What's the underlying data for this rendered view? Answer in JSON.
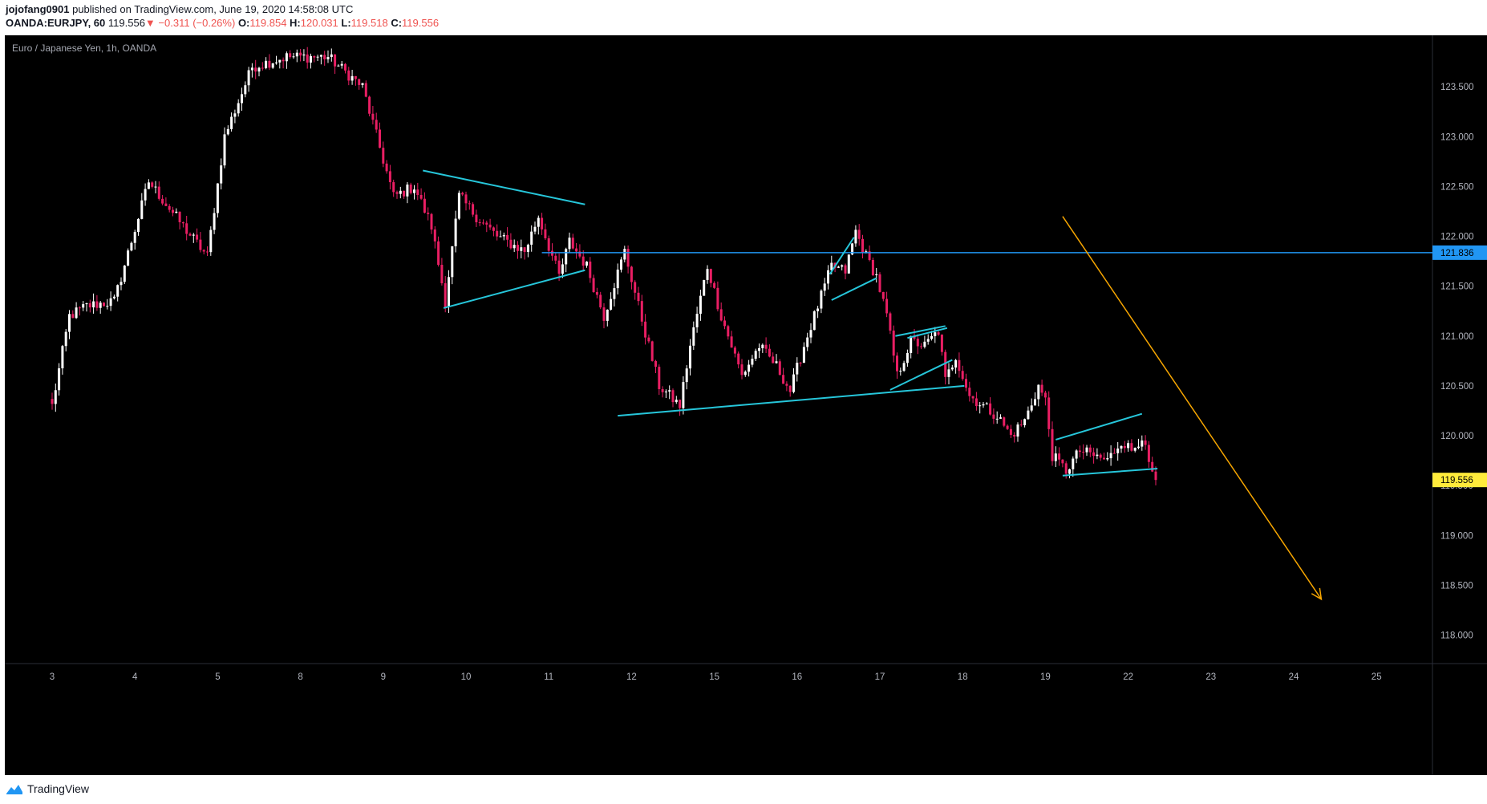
{
  "header": {
    "user": "jojofang0901",
    "published": "published on TradingView.com, June 19, 2020 14:58:08 UTC",
    "symbol": "OANDA:EURJPY, 60",
    "last": "119.556",
    "change_arrow": "▼",
    "change": "−0.311 (−0.26%)",
    "o_label": "O:",
    "o": "119.854",
    "h_label": "H:",
    "h": "120.031",
    "l_label": "L:",
    "l": "119.518",
    "c_label": "C:",
    "c": "119.556"
  },
  "footer": {
    "brand": "TradingView"
  },
  "colors": {
    "background": "#000000",
    "bull": "#ffffff",
    "bear": "#e91e63",
    "trendline": "#26c6da",
    "level_line": "#2196f3",
    "arrow": "#f7a600",
    "price_tag": "#ffeb3b"
  },
  "chart_data": {
    "type": "candlestick",
    "instrument": "Euro / Japanese Yen, 1h, OANDA",
    "y_ticks": [
      "123.500",
      "123.000",
      "122.500",
      "122.000",
      "121.500",
      "121.000",
      "120.500",
      "120.000",
      "119.500",
      "119.000",
      "118.500",
      "118.000"
    ],
    "y_tick_values": [
      123.5,
      123.0,
      122.5,
      122.0,
      121.5,
      121.0,
      120.5,
      120.0,
      119.5,
      119.0,
      118.5,
      118.0
    ],
    "x_ticks": [
      "3",
      "4",
      "5",
      "8",
      "9",
      "10",
      "11",
      "12",
      "15",
      "16",
      "17",
      "18",
      "19",
      "22",
      "23",
      "24",
      "25"
    ],
    "x_tick_index": [
      0,
      24,
      48,
      72,
      96,
      120,
      144,
      168,
      192,
      216,
      240,
      264,
      288,
      312,
      336,
      360,
      384
    ],
    "horizontal_level": 121.836,
    "horizontal_level_label": "121.836",
    "last_price": 119.556,
    "last_price_label": "119.556",
    "trend_lines": [
      {
        "from": [
          107.5,
          122.66
        ],
        "to": [
          154.5,
          122.32
        ]
      },
      {
        "from": [
          113.5,
          121.28
        ],
        "to": [
          154.5,
          121.66
        ]
      },
      {
        "from": [
          164.0,
          120.2
        ],
        "to": [
          264.5,
          120.5
        ]
      },
      {
        "from": [
          226.0,
          121.36
        ],
        "to": [
          239.0,
          121.58
        ]
      },
      {
        "from": [
          225.5,
          121.62
        ],
        "to": [
          232.5,
          121.99
        ]
      },
      {
        "from": [
          244.5,
          121.0
        ],
        "to": [
          259.0,
          121.1
        ]
      },
      {
        "from": [
          243.0,
          120.46
        ],
        "to": [
          261.0,
          120.76
        ]
      },
      {
        "from": [
          248.0,
          120.98
        ],
        "to": [
          259.5,
          121.08
        ]
      },
      {
        "from": [
          291.0,
          119.96
        ],
        "to": [
          316.0,
          120.22
        ]
      },
      {
        "from": [
          293.0,
          119.6
        ],
        "to": [
          320.5,
          119.67
        ]
      }
    ],
    "arrow": {
      "from": [
        293.0,
        122.2
      ],
      "to": [
        368.0,
        118.36
      ]
    },
    "swing_points": [
      [
        0,
        120.3
      ],
      [
        5,
        121.2
      ],
      [
        10,
        121.3
      ],
      [
        18,
        121.35
      ],
      [
        28,
        122.55
      ],
      [
        38,
        122.1
      ],
      [
        45,
        121.8
      ],
      [
        50,
        123.0
      ],
      [
        58,
        123.7
      ],
      [
        68,
        123.8
      ],
      [
        80,
        123.8
      ],
      [
        90,
        123.5
      ],
      [
        99,
        122.4
      ],
      [
        105,
        122.5
      ],
      [
        110,
        122.1
      ],
      [
        114,
        121.35
      ],
      [
        118,
        122.4
      ],
      [
        123,
        122.2
      ],
      [
        129,
        122.0
      ],
      [
        137,
        121.85
      ],
      [
        141,
        122.2
      ],
      [
        147,
        121.6
      ],
      [
        150,
        121.95
      ],
      [
        155,
        121.7
      ],
      [
        160,
        121.2
      ],
      [
        166,
        121.85
      ],
      [
        170,
        121.3
      ],
      [
        176,
        120.5
      ],
      [
        182,
        120.3
      ],
      [
        185,
        120.9
      ],
      [
        190,
        121.7
      ],
      [
        194,
        121.2
      ],
      [
        200,
        120.6
      ],
      [
        205,
        120.9
      ],
      [
        210,
        120.7
      ],
      [
        214,
        120.45
      ],
      [
        218,
        120.9
      ],
      [
        222,
        121.3
      ],
      [
        226,
        121.7
      ],
      [
        230,
        121.65
      ],
      [
        233,
        122.05
      ],
      [
        236,
        121.8
      ],
      [
        239,
        121.6
      ],
      [
        242,
        121.2
      ],
      [
        245,
        120.6
      ],
      [
        249,
        120.95
      ],
      [
        253,
        120.9
      ],
      [
        257,
        121.05
      ],
      [
        259,
        120.55
      ],
      [
        262,
        120.8
      ],
      [
        266,
        120.4
      ],
      [
        270,
        120.3
      ],
      [
        274,
        120.2
      ],
      [
        278,
        120.0
      ],
      [
        282,
        120.15
      ],
      [
        286,
        120.5
      ],
      [
        288,
        120.35
      ],
      [
        290,
        119.8
      ],
      [
        294,
        119.65
      ],
      [
        298,
        119.85
      ],
      [
        302,
        119.8
      ],
      [
        306,
        119.75
      ],
      [
        310,
        119.95
      ],
      [
        313,
        119.85
      ],
      [
        316,
        120.0
      ],
      [
        318,
        119.7
      ],
      [
        320,
        119.56
      ]
    ]
  }
}
